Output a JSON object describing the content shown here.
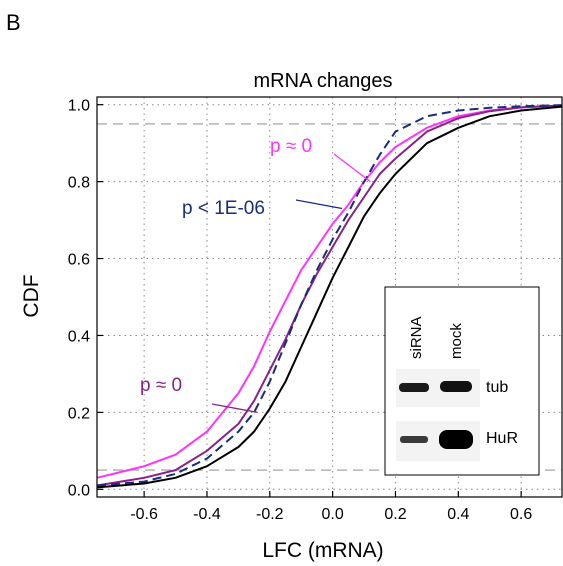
{
  "panel_label": "B",
  "chart_data": {
    "type": "line",
    "title": "mRNA changes",
    "xlabel": "LFC (mRNA)",
    "ylabel": "CDF",
    "xlim": [
      -0.75,
      0.73
    ],
    "ylim": [
      -0.02,
      1.02
    ],
    "x_ticks": [
      "-0.6",
      "-0.4",
      "-0.2",
      "0.0",
      "0.2",
      "0.4",
      "0.6"
    ],
    "x_tick_values": [
      -0.6,
      -0.4,
      -0.2,
      0.0,
      0.2,
      0.4,
      0.6
    ],
    "y_ticks": [
      "0.0",
      "0.2",
      "0.4",
      "0.6",
      "0.8",
      "1.0"
    ],
    "y_tick_values": [
      0.0,
      0.2,
      0.4,
      0.6,
      0.8,
      1.0
    ],
    "grid": true,
    "reference_lines_y": [
      0.05,
      0.95
    ],
    "series": [
      {
        "color": "#ff33ff",
        "style": "solid",
        "points": [
          [
            -0.75,
            0.03
          ],
          [
            -0.6,
            0.06
          ],
          [
            -0.5,
            0.09
          ],
          [
            -0.4,
            0.15
          ],
          [
            -0.3,
            0.25
          ],
          [
            -0.25,
            0.32
          ],
          [
            -0.2,
            0.41
          ],
          [
            -0.15,
            0.49
          ],
          [
            -0.1,
            0.57
          ],
          [
            -0.05,
            0.63
          ],
          [
            0.0,
            0.69
          ],
          [
            0.05,
            0.74
          ],
          [
            0.1,
            0.8
          ],
          [
            0.15,
            0.85
          ],
          [
            0.2,
            0.89
          ],
          [
            0.3,
            0.94
          ],
          [
            0.4,
            0.97
          ],
          [
            0.5,
            0.985
          ],
          [
            0.6,
            0.993
          ],
          [
            0.73,
            0.998
          ]
        ]
      },
      {
        "color": "#882288",
        "style": "solid",
        "points": [
          [
            -0.75,
            0.01
          ],
          [
            -0.6,
            0.03
          ],
          [
            -0.5,
            0.05
          ],
          [
            -0.4,
            0.1
          ],
          [
            -0.3,
            0.17
          ],
          [
            -0.25,
            0.23
          ],
          [
            -0.2,
            0.31
          ],
          [
            -0.15,
            0.39
          ],
          [
            -0.1,
            0.48
          ],
          [
            -0.05,
            0.56
          ],
          [
            0.0,
            0.63
          ],
          [
            0.05,
            0.7
          ],
          [
            0.1,
            0.76
          ],
          [
            0.15,
            0.82
          ],
          [
            0.2,
            0.86
          ],
          [
            0.3,
            0.93
          ],
          [
            0.4,
            0.965
          ],
          [
            0.5,
            0.983
          ],
          [
            0.6,
            0.993
          ],
          [
            0.73,
            0.998
          ]
        ]
      },
      {
        "color": "#1a2c80",
        "style": "dashed",
        "points": [
          [
            -0.75,
            0.01
          ],
          [
            -0.6,
            0.02
          ],
          [
            -0.5,
            0.04
          ],
          [
            -0.4,
            0.08
          ],
          [
            -0.3,
            0.15
          ],
          [
            -0.25,
            0.2
          ],
          [
            -0.2,
            0.28
          ],
          [
            -0.15,
            0.38
          ],
          [
            -0.1,
            0.48
          ],
          [
            -0.05,
            0.57
          ],
          [
            0.0,
            0.65
          ],
          [
            0.05,
            0.72
          ],
          [
            0.1,
            0.8
          ],
          [
            0.15,
            0.87
          ],
          [
            0.2,
            0.93
          ],
          [
            0.3,
            0.97
          ],
          [
            0.4,
            0.985
          ],
          [
            0.5,
            0.992
          ],
          [
            0.6,
            0.996
          ],
          [
            0.73,
            0.999
          ]
        ]
      },
      {
        "color": "#000000",
        "style": "solid",
        "points": [
          [
            -0.75,
            0.005
          ],
          [
            -0.6,
            0.015
          ],
          [
            -0.5,
            0.03
          ],
          [
            -0.4,
            0.06
          ],
          [
            -0.3,
            0.11
          ],
          [
            -0.25,
            0.15
          ],
          [
            -0.2,
            0.21
          ],
          [
            -0.15,
            0.28
          ],
          [
            -0.1,
            0.37
          ],
          [
            -0.05,
            0.46
          ],
          [
            0.0,
            0.55
          ],
          [
            0.05,
            0.63
          ],
          [
            0.1,
            0.71
          ],
          [
            0.15,
            0.77
          ],
          [
            0.2,
            0.82
          ],
          [
            0.3,
            0.9
          ],
          [
            0.4,
            0.94
          ],
          [
            0.5,
            0.97
          ],
          [
            0.6,
            0.985
          ],
          [
            0.73,
            0.995
          ]
        ]
      }
    ],
    "annotations": [
      {
        "text": "p ≈ 0",
        "color": "#ff33ff",
        "x": 0.12,
        "y": 0.8
      },
      {
        "text": "p < 1E-06",
        "color": "#1a2c80",
        "x": 0.03,
        "y": 0.73
      },
      {
        "text": "p ≈ 0",
        "color": "#882288",
        "x": -0.24,
        "y": 0.2
      }
    ]
  },
  "inset": {
    "lane_labels": [
      "siRNA",
      "mock"
    ],
    "band_labels": [
      "tub",
      "HuR"
    ]
  }
}
